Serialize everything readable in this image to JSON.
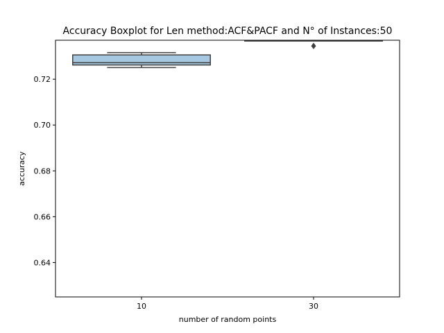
{
  "chart_data": {
    "type": "boxplot",
    "title": "Accuracy Boxplot for Len method:ACF&PACF and N° of Instances:50",
    "xlabel": "number of random points",
    "ylabel": "accuracy",
    "categories": [
      "10",
      "30"
    ],
    "ylim": [
      0.625,
      0.737
    ],
    "yticks": [
      0.64,
      0.66,
      0.68,
      0.7,
      0.72
    ],
    "ytick_labels": [
      "0.64",
      "0.66",
      "0.68",
      "0.70",
      "0.72"
    ],
    "grid": false,
    "boxes": [
      {
        "category": "10",
        "whisker_low": 0.7251,
        "q1": 0.7262,
        "median": 0.7272,
        "q3": 0.7306,
        "whisker_high": 0.7316,
        "outliers": []
      },
      {
        "category": "30",
        "whisker_low": 0.7368,
        "q1": 0.7368,
        "median": 0.7368,
        "q3": 0.7368,
        "whisker_high": 0.7368,
        "outliers": [
          0.7345
        ]
      }
    ],
    "colors": {
      "box_10": "#a6c8e0",
      "box_30": "#f3b889",
      "lines": "#3f3f3f",
      "axes": "#000000"
    }
  }
}
